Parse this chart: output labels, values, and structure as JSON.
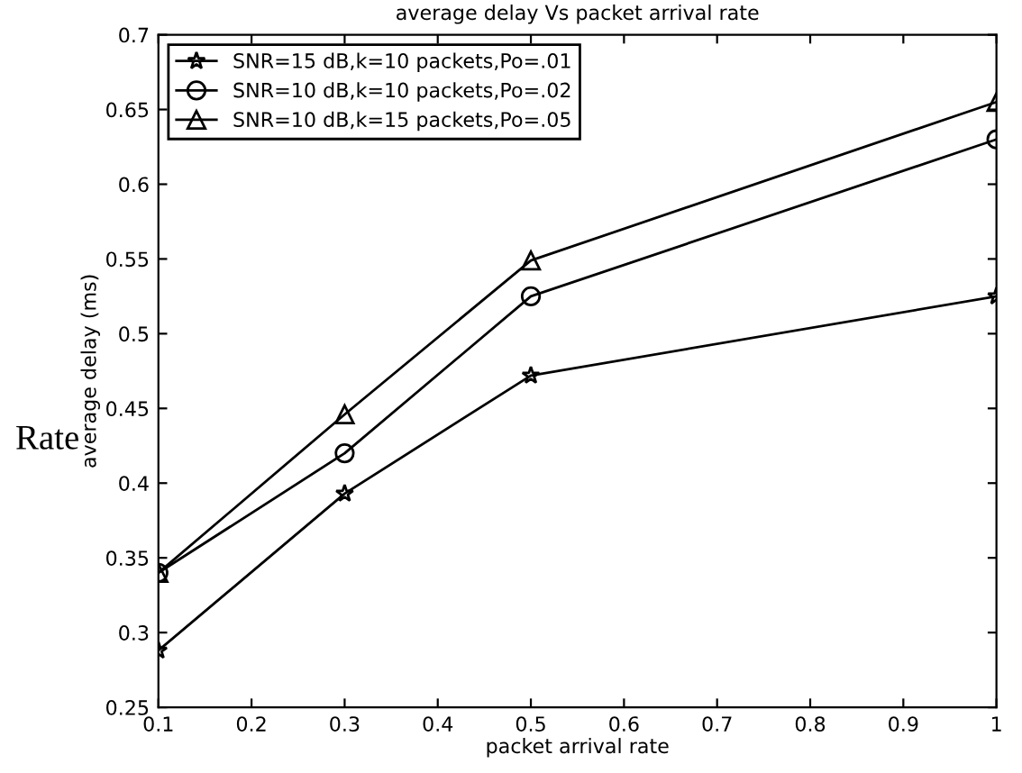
{
  "chart_data": {
    "type": "line",
    "title": "average delay Vs packet arrival rate",
    "xlabel": "packet arrival rate",
    "ylabel": "average delay (ms)",
    "x": [
      0.1,
      0.3,
      0.5,
      1
    ],
    "series": [
      {
        "name": "SNR=15 dB,k=10 packets,Po=.01",
        "color": "#000000",
        "marker": "star",
        "values": [
          0.288,
          0.393,
          0.472,
          0.525
        ]
      },
      {
        "name": "SNR=10 dB,k=10 packets,Po=.02",
        "color": "#000000",
        "marker": "circle",
        "values": [
          0.34,
          0.42,
          0.525,
          0.63
        ]
      },
      {
        "name": "SNR=10 dB,k=15 packets,Po=.05",
        "color": "#000000",
        "marker": "triangle",
        "values": [
          0.34,
          0.446,
          0.549,
          0.655
        ]
      }
    ],
    "xlim": [
      0.1,
      1
    ],
    "xticks": [
      0.1,
      0.2,
      0.3,
      0.4,
      0.5,
      0.6,
      0.7,
      0.8,
      0.9,
      1
    ],
    "ylim": [
      0.25,
      0.7
    ],
    "yticks": [
      0.25,
      0.3,
      0.35,
      0.4,
      0.45,
      0.5,
      0.55,
      0.6,
      0.65,
      0.7
    ],
    "line_style": "solid",
    "grid": false,
    "legend": "top left",
    "annotations": [
      "Rate"
    ]
  }
}
